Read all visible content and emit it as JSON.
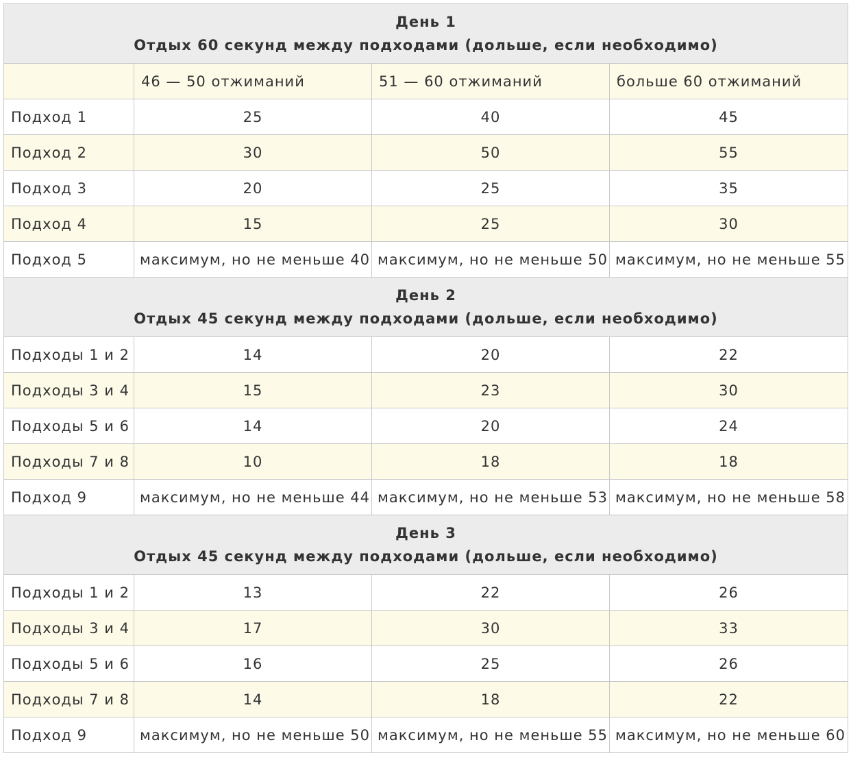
{
  "columns": [
    "",
    "46 — 50 отжиманий",
    "51 — 60 отжиманий",
    "больше 60 отжиманий"
  ],
  "days": [
    {
      "title": "День 1",
      "rest": "Отдых 60 секунд между подходами (дольше, если необходимо)",
      "rows": [
        {
          "label": "Подход 1",
          "values": [
            "25",
            "40",
            "45"
          ]
        },
        {
          "label": "Подход 2",
          "values": [
            "30",
            "50",
            "55"
          ]
        },
        {
          "label": "Подход 3",
          "values": [
            "20",
            "25",
            "35"
          ]
        },
        {
          "label": "Подход 4",
          "values": [
            "15",
            "25",
            "30"
          ]
        },
        {
          "label": "Подход 5",
          "values": [
            "максимум, но не меньше 40",
            "максимум, но не меньше 50",
            "максимум, но не меньше 55"
          ]
        }
      ]
    },
    {
      "title": "День 2",
      "rest": "Отдых 45 секунд между подходами (дольше, если необходимо)",
      "rows": [
        {
          "label": "Подходы 1 и 2",
          "values": [
            "14",
            "20",
            "22"
          ]
        },
        {
          "label": "Подходы 3 и 4",
          "values": [
            "15",
            "23",
            "30"
          ]
        },
        {
          "label": "Подходы 5 и 6",
          "values": [
            "14",
            "20",
            "24"
          ]
        },
        {
          "label": "Подходы 7 и 8",
          "values": [
            "10",
            "18",
            "18"
          ]
        },
        {
          "label": "Подход 9",
          "values": [
            "максимум, но не меньше 44",
            "максимум, но не меньше 53",
            "максимум, но не меньше 58"
          ]
        }
      ]
    },
    {
      "title": "День 3",
      "rest": "Отдых 45 секунд между подходами (дольше, если необходимо)",
      "rows": [
        {
          "label": "Подходы 1 и 2",
          "values": [
            "13",
            "22",
            "26"
          ]
        },
        {
          "label": "Подходы 3 и 4",
          "values": [
            "17",
            "30",
            "33"
          ]
        },
        {
          "label": "Подходы 5 и 6",
          "values": [
            "16",
            "25",
            "26"
          ]
        },
        {
          "label": "Подходы 7 и 8",
          "values": [
            "14",
            "18",
            "22"
          ]
        },
        {
          "label": "Подход 9",
          "values": [
            "максимум, но не меньше 50",
            "максимум, но не меньше 55",
            "максимум, но не меньше 60"
          ]
        }
      ]
    }
  ],
  "colors": {
    "header_bg": "#ececec",
    "alt_row_bg": "#fdfbe8",
    "border": "#c8c8c8",
    "text": "#333333"
  }
}
